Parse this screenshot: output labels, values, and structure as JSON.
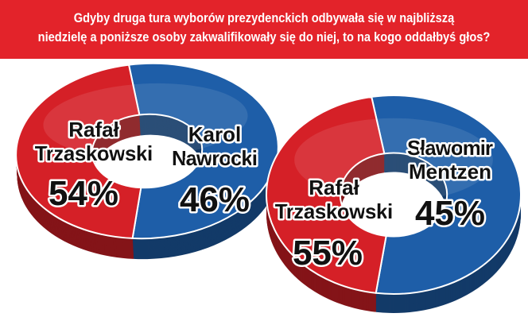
{
  "header": {
    "line1": "Gdyby druga tura wyborów prezydenckich odbywała się w najbliższą",
    "line2": "niedzielę a poniższe osoby zakwalifikowały się do niej, to na kogo oddałbyś głos?"
  },
  "colors": {
    "header_bg": "#e3232a",
    "blue": "#1e5ea8",
    "red": "#d52027"
  },
  "chart_data": [
    {
      "type": "pie",
      "title": "",
      "series": [
        {
          "name_lines": [
            "Rafał",
            "Trzaskowski"
          ],
          "label": "54%",
          "value": 54,
          "color": "#1e5ea8"
        },
        {
          "name_lines": [
            "Karol",
            "Nawrocki"
          ],
          "label": "46%",
          "value": 46,
          "color": "#d52027"
        }
      ]
    },
    {
      "type": "pie",
      "title": "",
      "series": [
        {
          "name_lines": [
            "Rafał",
            "Trzaskowski"
          ],
          "label": "55%",
          "value": 55,
          "color": "#1e5ea8"
        },
        {
          "name_lines": [
            "Sławomir",
            "Mentzen"
          ],
          "label": "45%",
          "value": 45,
          "color": "#d52027"
        }
      ]
    }
  ]
}
